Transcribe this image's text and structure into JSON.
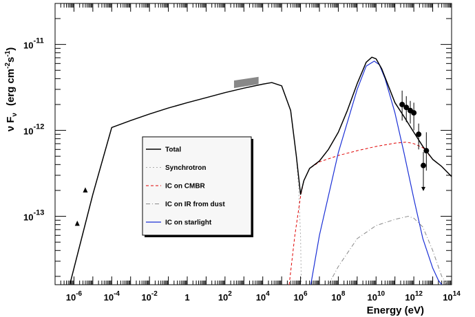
{
  "chart_data": {
    "type": "line",
    "xlabel": "Energy  (eV)",
    "ylabel": "ν F",
    "ylabel_sub": "ν",
    "ylabel_units": "(erg cm",
    "ylabel_exp1": "-2",
    "ylabel_mid": "s",
    "ylabel_exp2": "-1",
    "ylabel_close": ")",
    "x_scale": "log",
    "y_scale": "log",
    "xlim": [
      1e-07,
      100000000000000.0
    ],
    "ylim": [
      1.6e-14,
      3e-11
    ],
    "grid": false,
    "legend_placement": "center-left",
    "x_ticks": [
      {
        "value": 1e-06,
        "base": "10",
        "exp": "-6"
      },
      {
        "value": 0.0001,
        "base": "10",
        "exp": "-4"
      },
      {
        "value": 0.01,
        "base": "10",
        "exp": "-2"
      },
      {
        "value": 1,
        "base": "1",
        "exp": ""
      },
      {
        "value": 100.0,
        "base": "10",
        "exp": "2"
      },
      {
        "value": 10000.0,
        "base": "10",
        "exp": "4"
      },
      {
        "value": 1000000.0,
        "base": "10",
        "exp": "6"
      },
      {
        "value": 100000000.0,
        "base": "10",
        "exp": "8"
      },
      {
        "value": 10000000000.0,
        "base": "10",
        "exp": "10"
      },
      {
        "value": 1000000000000.0,
        "base": "10",
        "exp": "12"
      },
      {
        "value": 100000000000000.0,
        "base": "10",
        "exp": "14"
      }
    ],
    "y_ticks": [
      {
        "value": 1e-13,
        "base": "10",
        "exp": "-13"
      },
      {
        "value": 1e-12,
        "base": "10",
        "exp": "-12"
      },
      {
        "value": 1e-11,
        "base": "10",
        "exp": "-11"
      }
    ],
    "series": [
      {
        "name": "Total",
        "color": "#000000",
        "dash": "",
        "width": 1.5,
        "x": [
          6e-07,
          1e-05,
          0.0001,
          0.001,
          0.01,
          0.1,
          1,
          10.0,
          100.0,
          1000.0,
          10000.0,
          30000.0,
          100000.0,
          300000.0,
          600000.0,
          1000000.0,
          1500000.0,
          3000000.0,
          10000000.0,
          30000000.0,
          100000000.0,
          300000000.0,
          1000000000.0,
          3000000000.0,
          6000000000.0,
          10000000000.0,
          20000000000.0,
          50000000000.0,
          100000000000.0,
          300000000000.0,
          1000000000000.0,
          3000000000000.0,
          10000000000000.0,
          30000000000000.0,
          100000000000000.0
        ],
        "y": [
          1.6e-14,
          1.8e-13,
          1.08e-12,
          1.3e-12,
          1.55e-12,
          1.82e-12,
          2.1e-12,
          2.4e-12,
          2.75e-12,
          3.1e-12,
          3.45e-12,
          3.6e-12,
          3.3e-12,
          1.7e-12,
          5e-13,
          1.8e-13,
          2.6e-13,
          3.6e-13,
          4.4e-13,
          6e-13,
          9.5e-13,
          1.7e-12,
          3.5e-12,
          6.2e-12,
          7.1e-12,
          6.8e-12,
          5.2e-12,
          3.1e-12,
          2.1e-12,
          1.45e-12,
          9.5e-13,
          6.5e-13,
          4.6e-13,
          3.8e-13,
          2.9e-13
        ]
      },
      {
        "name": "Synchrotron",
        "color": "#aaaaaa",
        "dash": "2,3",
        "width": 1,
        "x": [
          6e-07,
          1e-05,
          0.0001,
          0.001,
          0.01,
          0.1,
          1,
          10.0,
          100.0,
          1000.0,
          10000.0,
          30000.0,
          100000.0,
          300000.0,
          600000.0,
          800000.0,
          1000000.0,
          1100000.0
        ],
        "y": [
          1.6e-14,
          1.8e-13,
          1.08e-12,
          1.3e-12,
          1.55e-12,
          1.82e-12,
          2.1e-12,
          2.4e-12,
          2.75e-12,
          3.1e-12,
          3.45e-12,
          3.6e-12,
          3.3e-12,
          1.7e-12,
          5e-13,
          2e-13,
          6e-14,
          1.6e-14
        ]
      },
      {
        "name": "IC on CMBR",
        "color": "#e00000",
        "dash": "4,3",
        "width": 1,
        "x": [
          250000.0,
          500000.0,
          1000000.0,
          1500000.0,
          3000000.0,
          10000000.0,
          100000000.0,
          1000000000.0,
          10000000000.0,
          100000000000.0,
          400000000000.0,
          1000000000000.0,
          3000000000000.0,
          10000000000000.0,
          30000000000000.0,
          100000000000000.0
        ],
        "y": [
          1.6e-14,
          6e-14,
          1.7e-13,
          2.6e-13,
          3.6e-13,
          4.3e-13,
          5.1e-13,
          5.8e-13,
          6.5e-13,
          7.1e-13,
          7.3e-13,
          7e-13,
          6.3e-13,
          4.6e-13,
          3.8e-13,
          2.9e-13
        ]
      },
      {
        "name": "IC on IR from dust",
        "color": "#888888",
        "dash": "6,3,1,3",
        "width": 1,
        "x": [
          30000000.0,
          100000000.0,
          1000000000.0,
          10000000000.0,
          100000000000.0,
          500000000000.0,
          1000000000000.0,
          3000000000000.0,
          10000000000000.0,
          30000000000000.0,
          60000000000000.0
        ],
        "y": [
          1.6e-14,
          2.6e-14,
          5.5e-14,
          7.8e-14,
          9.2e-14,
          1e-13,
          9.5e-14,
          7.5e-14,
          4e-14,
          2e-14,
          1.6e-14
        ]
      },
      {
        "name": "IC on starlight",
        "color": "#1a2fd6",
        "dash": "",
        "width": 1.2,
        "x": [
          3500000.0,
          10000000.0,
          100000000.0,
          1000000000.0,
          3000000000.0,
          8000000000.0,
          15000000000.0,
          30000000000.0,
          100000000000.0,
          300000000000.0,
          1000000000000.0,
          3000000000000.0,
          10000000000000.0,
          20000000000000.0,
          30000000000000.0
        ],
        "y": [
          1.6e-14,
          6e-14,
          5.5e-13,
          3e-12,
          5.6e-12,
          6.4e-12,
          5.8e-12,
          4e-12,
          1.6e-12,
          5.5e-13,
          1.6e-13,
          5.5e-14,
          2.5e-14,
          1.8e-14,
          1.6e-14
        ]
      }
    ],
    "data_points": [
      {
        "x": 1.5e-06,
        "y": 8.2e-14,
        "marker": "triangle"
      },
      {
        "x": 4e-06,
        "y": 2e-13,
        "marker": "triangle"
      },
      {
        "x": 240000000000.0,
        "y": 2e-12,
        "yerr_lo": 1.3e-12,
        "yerr_hi": 2.9e-12,
        "marker": "circle"
      },
      {
        "x": 400000000000.0,
        "y": 1.85e-12,
        "yerr_lo": 1.25e-12,
        "yerr_hi": 2.5e-12,
        "marker": "circle"
      },
      {
        "x": 650000000000.0,
        "y": 1.7e-12,
        "yerr_lo": 1.2e-12,
        "yerr_hi": 2.2e-12,
        "marker": "circle"
      },
      {
        "x": 1000000000000.0,
        "y": 1.6e-12,
        "yerr_lo": 1e-12,
        "yerr_hi": 2.1e-12,
        "marker": "circle"
      },
      {
        "x": 1800000000000.0,
        "y": 9e-13,
        "yerr_lo": 6e-13,
        "yerr_hi": 1.2e-12,
        "marker": "circle"
      },
      {
        "x": 3200000000000.0,
        "y": 3.9e-13,
        "yerr_lo": 2.4e-13,
        "yerr_hi": 5.6e-13,
        "marker": "circle"
      },
      {
        "x": 4600000000000.0,
        "y": 5.8e-13,
        "yerr_lo": 3.4e-13,
        "yerr_hi": 9.5e-13,
        "marker": "circle"
      },
      {
        "x": 3200000000000.0,
        "y": 2.7e-13,
        "marker": "arrow-down",
        "limit_to": 2e-13
      }
    ],
    "shaded_band": {
      "x": [
        300.0,
        6000.0
      ],
      "y_at_x0": [
        3.1e-12,
        3.8e-12
      ],
      "y_at_x1": [
        3.45e-12,
        4.2e-12
      ],
      "color": "#888888"
    },
    "legend": [
      {
        "label": "Total",
        "series": 0
      },
      {
        "label": "Synchrotron",
        "series": 1
      },
      {
        "label": "IC on CMBR",
        "series": 2
      },
      {
        "label": "IC on IR from dust",
        "series": 3
      },
      {
        "label": "IC on starlight",
        "series": 4
      }
    ]
  }
}
